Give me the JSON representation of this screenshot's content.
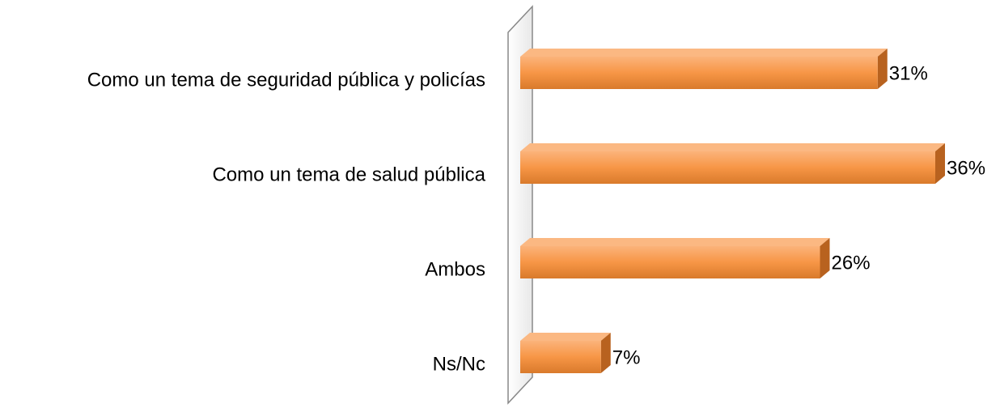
{
  "chart_data": {
    "type": "bar",
    "orientation": "horizontal",
    "categories": [
      "Como un tema de seguridad pública y policías",
      "Como un tema de salud pública",
      "Ambos",
      "Ns/Nc"
    ],
    "values": [
      31,
      36,
      26,
      7
    ],
    "value_labels": [
      "31%",
      "36%",
      "26%",
      "7%"
    ],
    "color": "#f79646",
    "xlim": [
      0,
      40
    ]
  }
}
